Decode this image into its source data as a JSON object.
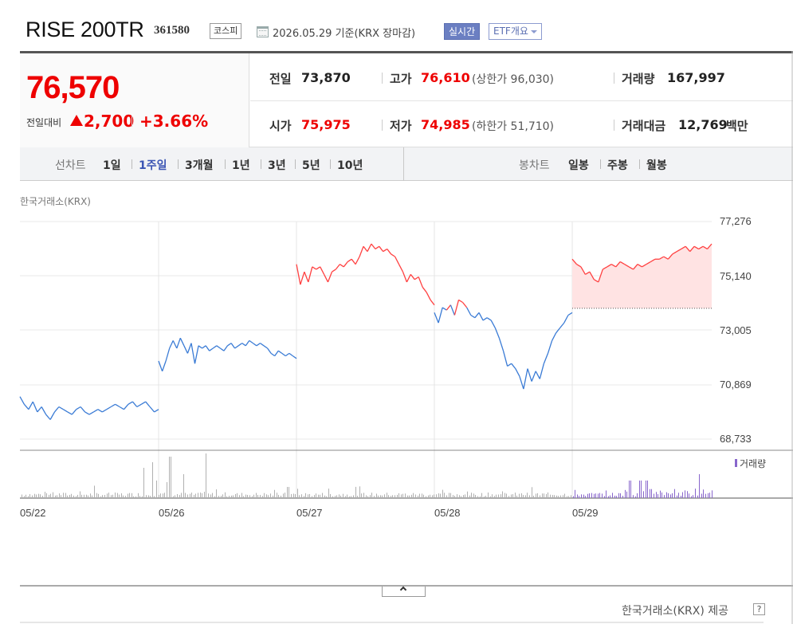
{
  "header": {
    "title": "RISE 200TR",
    "code": "361580",
    "market_badge": "코스피",
    "date_text": "2026.05.29 기준(KRX 장마감)",
    "realtime_label": "실시간",
    "etf_overview_label": "ETF개요"
  },
  "quote": {
    "price": "76,570",
    "change_label": "전일대비",
    "change_direction_icon": "up-triangle-icon",
    "change_value": "2,700",
    "change_percent": "+3.66%",
    "row1": {
      "prev_close_label": "전일",
      "prev_close": "73,870",
      "high_label": "고가",
      "high": "76,610",
      "upper_limit_text": "(상한가 96,030)",
      "volume_label": "거래량",
      "volume": "167,997"
    },
    "row2": {
      "open_label": "시가",
      "open": "75,975",
      "low_label": "저가",
      "low": "74,985",
      "lower_limit_text": "(하한가 51,710)",
      "trade_value_label": "거래대금",
      "trade_value": "12,769",
      "trade_value_unit": "백만"
    }
  },
  "toolbar": {
    "line_chart_label": "선차트",
    "periods": [
      "1일",
      "1주일",
      "3개월",
      "1년",
      "3년",
      "5년",
      "10년"
    ],
    "active_period": "1주일",
    "candle_chart_label": "봉차트",
    "candle_periods": [
      "일봉",
      "주봉",
      "월봉"
    ]
  },
  "chart": {
    "source_label": "한국거래소(KRX)",
    "volume_legend": "거래량",
    "provider": "한국거래소(KRX) 제공",
    "help_label": "?",
    "colors": {
      "up": "#ff4040",
      "down": "#3a7bd5",
      "fill": "#ffe3e3",
      "volume": "#b0b0b0",
      "volume_last": "#8866cc"
    }
  },
  "chart_data": {
    "type": "line",
    "y_ticks": [
      "77,276",
      "75,140",
      "73,005",
      "70,869",
      "68,733"
    ],
    "ylim": [
      68733,
      77276
    ],
    "x_ticks": [
      "05/22",
      "05/26",
      "05/27",
      "05/28",
      "05/29"
    ],
    "reference_price": 73870,
    "days": [
      {
        "label": "05/22",
        "prices": [
          70400,
          70100,
          69900,
          70200,
          69800,
          70000,
          69700,
          69500,
          69800,
          70000,
          69900,
          69800,
          69700,
          69900,
          70000,
          69800,
          69700,
          69800,
          69900,
          69800,
          69900,
          70000,
          70100,
          70000,
          69900,
          70100,
          70200,
          70000,
          70100,
          70200,
          70000,
          69800,
          69900
        ]
      },
      {
        "label": "05/26",
        "prices": [
          71800,
          71400,
          71800,
          72300,
          72600,
          72300,
          72700,
          72400,
          72100,
          72500,
          71700,
          72400,
          72300,
          72400,
          72200,
          72300,
          72400,
          72300,
          72200,
          72400,
          72500,
          72300,
          72400,
          72500,
          72400,
          72600,
          72500,
          72400,
          72500,
          72400,
          72300,
          72100,
          72000,
          72200,
          72100,
          72000,
          72100,
          72000,
          71900
        ]
      },
      {
        "label": "05/27",
        "prices": [
          75600,
          74800,
          75300,
          74900,
          75500,
          75400,
          75500,
          75200,
          74900,
          75300,
          75400,
          75600,
          75500,
          75700,
          75800,
          75600,
          75900,
          76300,
          76100,
          76400,
          76200,
          76300,
          76100,
          76200,
          76000,
          75900,
          75600,
          75300,
          74900,
          75200,
          75000,
          75100,
          74700,
          74500,
          74200,
          74000
        ]
      },
      {
        "label": "05/28",
        "prices": [
          73700,
          73300,
          73900,
          73800,
          74000,
          73600,
          74200,
          74100,
          73900,
          73600,
          73500,
          73700,
          73400,
          73500,
          73400,
          73100,
          72700,
          72200,
          71600,
          71700,
          71500,
          71200,
          70700,
          71500,
          71000,
          71400,
          71100,
          71700,
          72100,
          72600,
          72900,
          73100,
          73300,
          73600,
          73700
        ]
      },
      {
        "label": "05/29",
        "prices": [
          75800,
          75600,
          75500,
          75200,
          75300,
          75000,
          74900,
          75400,
          75500,
          75600,
          75500,
          75700,
          75600,
          75500,
          75400,
          75600,
          75500,
          75600,
          75700,
          75800,
          75800,
          75900,
          75800,
          76000,
          76100,
          76200,
          76300,
          76100,
          76300,
          76200,
          76300,
          76200,
          76400
        ]
      }
    ]
  }
}
